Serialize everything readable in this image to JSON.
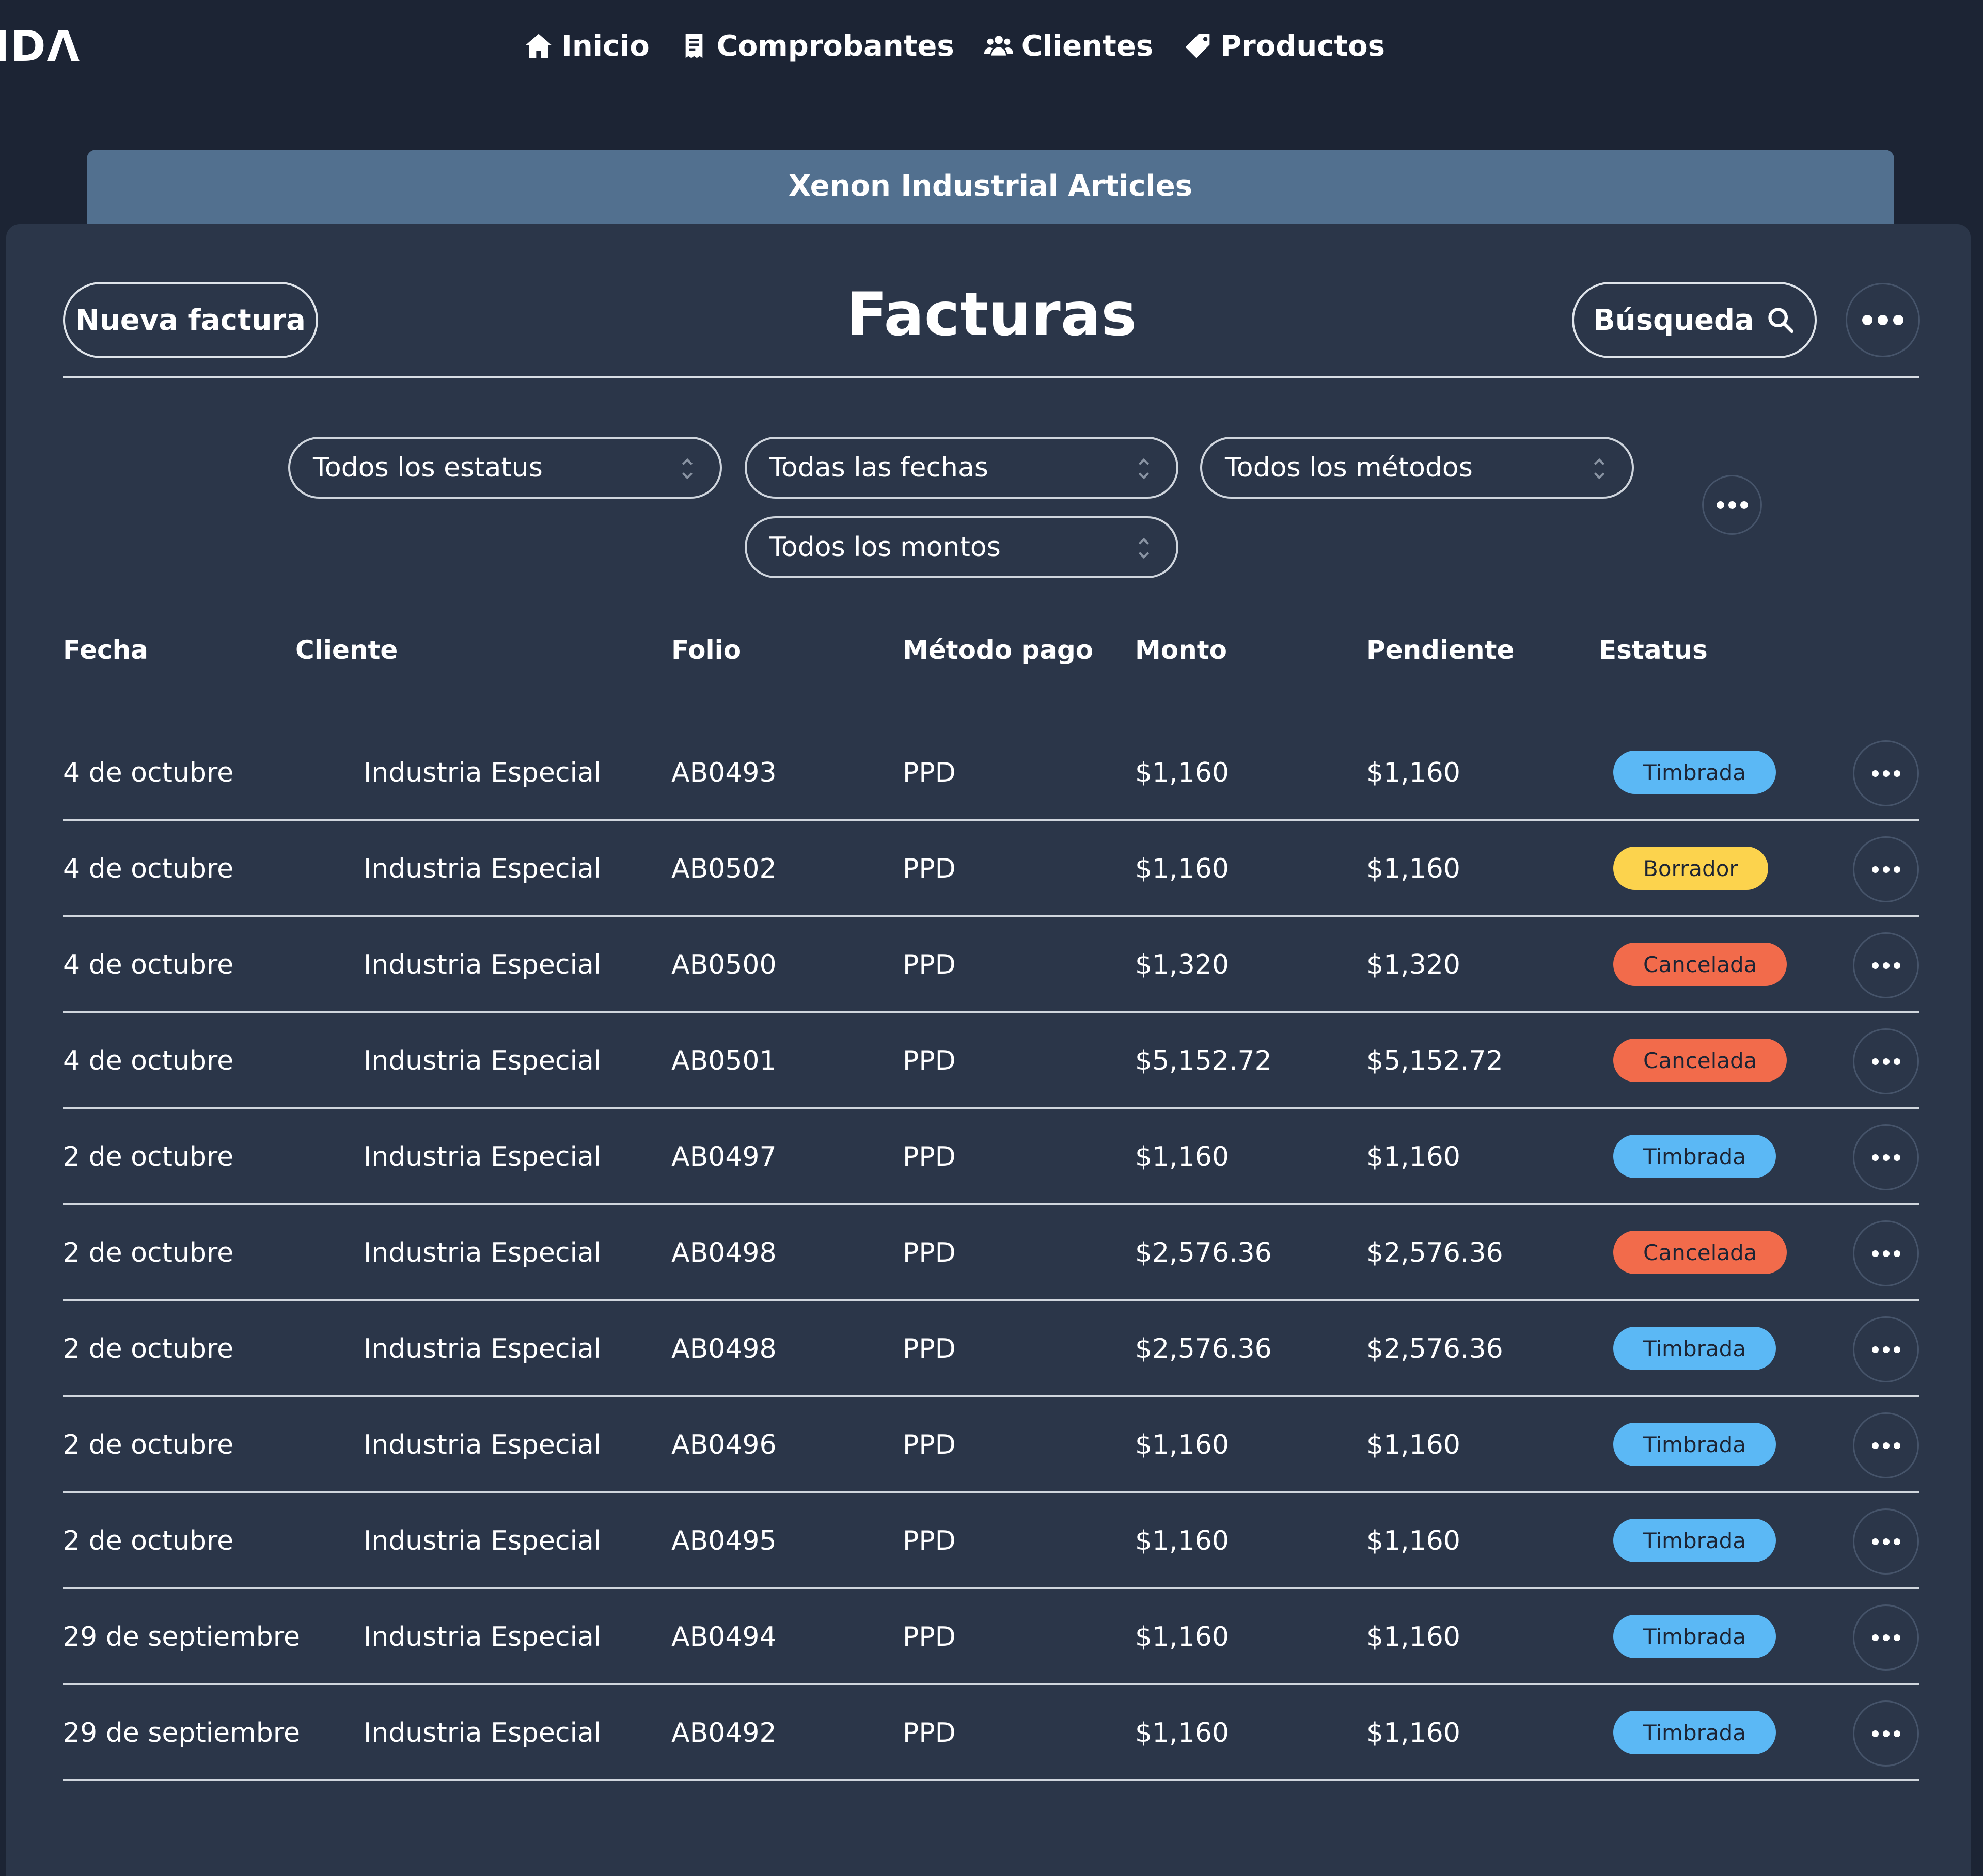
{
  "nav": {
    "logo": "IDΛ",
    "items": [
      {
        "label": "Inicio",
        "icon": "home-icon"
      },
      {
        "label": "Comprobantes",
        "icon": "receipt-icon"
      },
      {
        "label": "Clientes",
        "icon": "users-icon"
      },
      {
        "label": "Productos",
        "icon": "tag-icon"
      }
    ]
  },
  "company": {
    "name": "Xenon Industrial Articles"
  },
  "header": {
    "title": "Facturas",
    "new_button": "Nueva factura",
    "search_button": "Búsqueda",
    "search_icon": "search-icon",
    "more_icon": "more-horizontal-icon"
  },
  "filters": {
    "status": "Todos los estatus",
    "dates": "Todas las fechas",
    "methods": "Todos los métodos",
    "amounts": "Todos los montos",
    "chevron_icon": "chevron-updown-icon"
  },
  "table": {
    "columns": [
      "Fecha",
      "Cliente",
      "Folio",
      "Método pago",
      "Monto",
      "Pendiente",
      "Estatus"
    ],
    "rows": [
      {
        "fecha": "4 de octubre",
        "cliente": "Industria Especial",
        "folio": "AB0493",
        "metodo": "PPD",
        "monto": "$1,160",
        "pendiente": "$1,160",
        "estatus": "Timbrada"
      },
      {
        "fecha": "4 de octubre",
        "cliente": "Industria Especial",
        "folio": "AB0502",
        "metodo": "PPD",
        "monto": "$1,160",
        "pendiente": "$1,160",
        "estatus": "Borrador"
      },
      {
        "fecha": "4 de octubre",
        "cliente": "Industria Especial",
        "folio": "AB0500",
        "metodo": "PPD",
        "monto": "$1,320",
        "pendiente": "$1,320",
        "estatus": "Cancelada"
      },
      {
        "fecha": "4 de octubre",
        "cliente": "Industria Especial",
        "folio": "AB0501",
        "metodo": "PPD",
        "monto": "$5,152.72",
        "pendiente": "$5,152.72",
        "estatus": "Cancelada"
      },
      {
        "fecha": "2 de octubre",
        "cliente": "Industria Especial",
        "folio": "AB0497",
        "metodo": "PPD",
        "monto": "$1,160",
        "pendiente": "$1,160",
        "estatus": "Timbrada"
      },
      {
        "fecha": "2 de octubre",
        "cliente": "Industria Especial",
        "folio": "AB0498",
        "metodo": "PPD",
        "monto": "$2,576.36",
        "pendiente": "$2,576.36",
        "estatus": "Cancelada"
      },
      {
        "fecha": "2 de octubre",
        "cliente": "Industria Especial",
        "folio": "AB0498",
        "metodo": "PPD",
        "monto": "$2,576.36",
        "pendiente": "$2,576.36",
        "estatus": "Timbrada"
      },
      {
        "fecha": "2 de octubre",
        "cliente": "Industria Especial",
        "folio": "AB0496",
        "metodo": "PPD",
        "monto": "$1,160",
        "pendiente": "$1,160",
        "estatus": "Timbrada"
      },
      {
        "fecha": "2 de octubre",
        "cliente": "Industria Especial",
        "folio": "AB0495",
        "metodo": "PPD",
        "monto": "$1,160",
        "pendiente": "$1,160",
        "estatus": "Timbrada"
      },
      {
        "fecha": "29 de septiembre",
        "cliente": "Industria Especial",
        "folio": "AB0494",
        "metodo": "PPD",
        "monto": "$1,160",
        "pendiente": "$1,160",
        "estatus": "Timbrada"
      },
      {
        "fecha": "29 de septiembre",
        "cliente": "Industria Especial",
        "folio": "AB0492",
        "metodo": "PPD",
        "monto": "$1,160",
        "pendiente": "$1,160",
        "estatus": "Timbrada"
      }
    ]
  },
  "status_colors": {
    "Timbrada": "#5bb8f5",
    "Borrador": "#fcd34d",
    "Cancelada": "#f26b4b"
  },
  "colors": {
    "background": "#1c2434",
    "panel": "#2b3649",
    "company_tab": "#52708f"
  }
}
